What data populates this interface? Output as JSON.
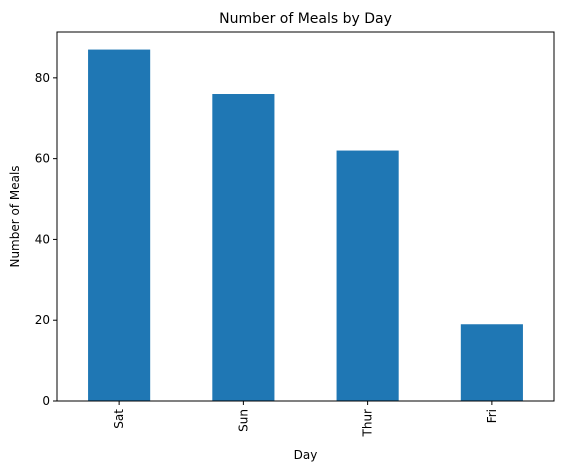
{
  "chart_data": {
    "type": "bar",
    "title": "Number of Meals by Day",
    "xlabel": "Day",
    "ylabel": "Number of Meals",
    "categories": [
      "Sat",
      "Sun",
      "Thur",
      "Fri"
    ],
    "values": [
      87,
      76,
      62,
      19
    ],
    "ylim": [
      0,
      91.35
    ],
    "yticks": [
      0,
      20,
      40,
      60,
      80
    ],
    "bar_color": "#1f77b4",
    "grid": false,
    "legend": "none",
    "xtick_rotation": "vertical"
  }
}
